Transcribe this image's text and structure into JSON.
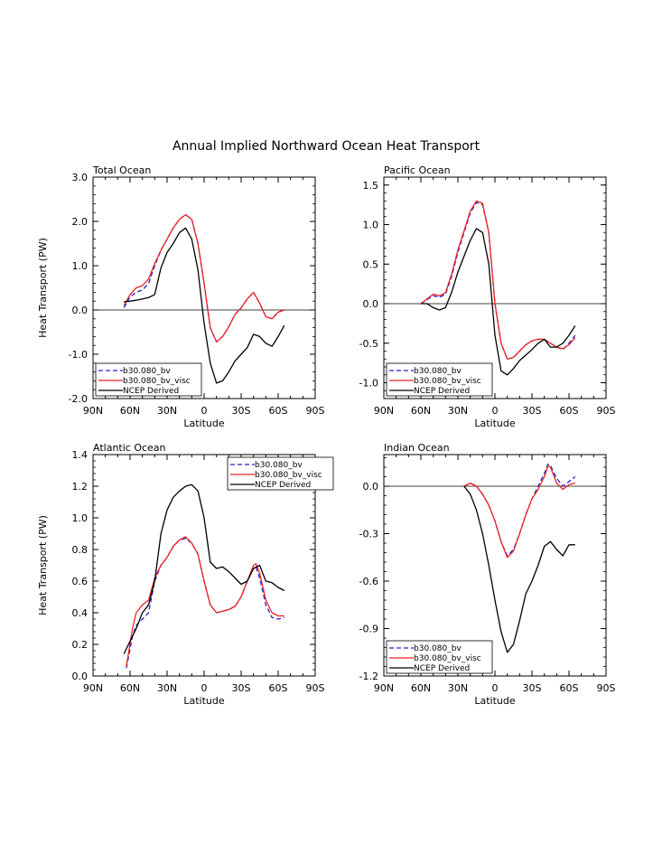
{
  "main_title": "Annual Implied Northward Ocean Heat Transport",
  "colors": {
    "b30_080_bv": "#2222cc",
    "b30_080_bv_visc": "#ee2222",
    "ncep": "#000000"
  },
  "chart_data": [
    {
      "type": "line",
      "title": "Total Ocean",
      "xlabel": "Latitude",
      "ylabel": "Heat Transport (PW)",
      "xlim": [
        -90,
        90
      ],
      "ylim": [
        -2.0,
        3.0
      ],
      "x_ticks": [
        -90,
        -60,
        -30,
        0,
        30,
        60,
        90
      ],
      "x_tick_labels": [
        "90N",
        "60N",
        "30N",
        "0",
        "30S",
        "60S",
        "90S"
      ],
      "y_ticks": [
        -2.0,
        -1.0,
        0.0,
        1.0,
        2.0,
        3.0
      ],
      "y_tick_labels": [
        "-2.0",
        "-1.0",
        "0.0",
        "1.0",
        "2.0",
        "3.0"
      ],
      "legend_loc": "bottom-left",
      "series": [
        {
          "name": "b30.080_bv",
          "style": "dashed",
          "x": [
            -65,
            -60,
            -55,
            -50,
            -45,
            -40,
            -35,
            -30,
            -25,
            -20,
            -15,
            -10,
            -5,
            0,
            5,
            10,
            15,
            20,
            25,
            30,
            35,
            40,
            45,
            50,
            55,
            60,
            65
          ],
          "y": [
            0.05,
            0.3,
            0.4,
            0.45,
            0.6,
            1.0,
            1.35,
            1.6,
            1.85,
            2.05,
            2.15,
            2.05,
            1.5,
            0.6,
            -0.4,
            -0.72,
            -0.6,
            -0.38,
            -0.1,
            0.05,
            0.25,
            0.4,
            0.15,
            -0.15,
            -0.2,
            -0.05,
            0.0
          ]
        },
        {
          "name": "b30.080_bv_visc",
          "style": "solid",
          "x": [
            -65,
            -60,
            -55,
            -50,
            -45,
            -40,
            -35,
            -30,
            -25,
            -20,
            -15,
            -10,
            -5,
            0,
            5,
            10,
            15,
            20,
            25,
            30,
            35,
            40,
            45,
            50,
            55,
            60,
            65
          ],
          "y": [
            0.1,
            0.35,
            0.5,
            0.55,
            0.7,
            1.05,
            1.35,
            1.6,
            1.85,
            2.05,
            2.15,
            2.05,
            1.5,
            0.6,
            -0.4,
            -0.72,
            -0.6,
            -0.38,
            -0.1,
            0.05,
            0.25,
            0.4,
            0.15,
            -0.15,
            -0.2,
            -0.05,
            0.0
          ]
        },
        {
          "name": "NCEP Derived",
          "style": "solid",
          "x": [
            -65,
            -60,
            -55,
            -50,
            -45,
            -40,
            -35,
            -30,
            -25,
            -20,
            -15,
            -10,
            -5,
            0,
            5,
            10,
            15,
            20,
            25,
            30,
            35,
            40,
            45,
            50,
            55,
            60,
            65
          ],
          "y": [
            0.18,
            0.2,
            0.22,
            0.25,
            0.28,
            0.35,
            0.95,
            1.3,
            1.5,
            1.75,
            1.85,
            1.6,
            0.9,
            -0.3,
            -1.2,
            -1.65,
            -1.6,
            -1.4,
            -1.15,
            -1.0,
            -0.85,
            -0.55,
            -0.6,
            -0.75,
            -0.82,
            -0.6,
            -0.35
          ]
        }
      ]
    },
    {
      "type": "line",
      "title": "Pacific Ocean",
      "xlabel": "Latitude",
      "ylabel": "",
      "xlim": [
        -90,
        90
      ],
      "ylim": [
        -1.2,
        1.6
      ],
      "x_ticks": [
        -90,
        -60,
        -30,
        0,
        30,
        60,
        90
      ],
      "x_tick_labels": [
        "90N",
        "60N",
        "30N",
        "0",
        "30S",
        "60S",
        "90S"
      ],
      "y_ticks": [
        -1.0,
        -0.5,
        0.0,
        0.5,
        1.0,
        1.5
      ],
      "y_tick_labels": [
        "-1.0",
        "-0.5",
        "0.0",
        "0.5",
        "1.0",
        "1.5"
      ],
      "legend_loc": "bottom-left",
      "series": [
        {
          "name": "b30.080_bv",
          "style": "dashed",
          "x": [
            -60,
            -55,
            -50,
            -45,
            -40,
            -35,
            -30,
            -25,
            -20,
            -15,
            -10,
            -5,
            0,
            5,
            10,
            15,
            20,
            25,
            30,
            35,
            40,
            45,
            50,
            55,
            60,
            65
          ],
          "y": [
            0.0,
            0.05,
            0.1,
            0.08,
            0.12,
            0.35,
            0.65,
            0.9,
            1.15,
            1.28,
            1.25,
            0.9,
            0.0,
            -0.5,
            -0.7,
            -0.68,
            -0.6,
            -0.52,
            -0.47,
            -0.45,
            -0.45,
            -0.5,
            -0.55,
            -0.58,
            -0.5,
            -0.4
          ]
        },
        {
          "name": "b30.080_bv_visc",
          "style": "solid",
          "x": [
            -60,
            -55,
            -50,
            -45,
            -40,
            -35,
            -30,
            -25,
            -20,
            -15,
            -10,
            -5,
            0,
            5,
            10,
            15,
            20,
            25,
            30,
            35,
            40,
            45,
            50,
            55,
            60,
            65
          ],
          "y": [
            0.0,
            0.06,
            0.12,
            0.1,
            0.14,
            0.38,
            0.68,
            0.92,
            1.17,
            1.3,
            1.27,
            0.9,
            0.0,
            -0.5,
            -0.7,
            -0.68,
            -0.6,
            -0.52,
            -0.47,
            -0.45,
            -0.45,
            -0.5,
            -0.55,
            -0.57,
            -0.52,
            -0.43
          ]
        },
        {
          "name": "NCEP Derived",
          "style": "solid",
          "x": [
            -60,
            -55,
            -50,
            -45,
            -40,
            -35,
            -30,
            -25,
            -20,
            -15,
            -10,
            -5,
            0,
            5,
            10,
            15,
            20,
            25,
            30,
            35,
            40,
            45,
            50,
            55,
            60,
            65
          ],
          "y": [
            0.0,
            0.0,
            -0.05,
            -0.08,
            -0.05,
            0.15,
            0.4,
            0.6,
            0.8,
            0.95,
            0.9,
            0.5,
            -0.4,
            -0.85,
            -0.9,
            -0.82,
            -0.72,
            -0.65,
            -0.58,
            -0.5,
            -0.45,
            -0.55,
            -0.55,
            -0.5,
            -0.4,
            -0.28
          ]
        }
      ]
    },
    {
      "type": "line",
      "title": "Atlantic Ocean",
      "xlabel": "Latitude",
      "ylabel": "Heat Transport (PW)",
      "xlim": [
        -90,
        90
      ],
      "ylim": [
        0.0,
        1.4
      ],
      "x_ticks": [
        -90,
        -60,
        -30,
        0,
        30,
        60,
        90
      ],
      "x_tick_labels": [
        "90N",
        "60N",
        "30N",
        "0",
        "30S",
        "60S",
        "90S"
      ],
      "y_ticks": [
        0.0,
        0.2,
        0.4,
        0.6,
        0.8,
        1.0,
        1.2,
        1.4
      ],
      "y_tick_labels": [
        "0.0",
        "0.2",
        "0.4",
        "0.6",
        "0.8",
        "1.0",
        "1.2",
        "1.4"
      ],
      "legend_loc": "top-right",
      "series": [
        {
          "name": "b30.080_bv",
          "style": "dashed",
          "x": [
            -63,
            -58,
            -55,
            -50,
            -45,
            -40,
            -35,
            -30,
            -25,
            -20,
            -15,
            -10,
            -5,
            0,
            5,
            10,
            15,
            20,
            25,
            30,
            35,
            40,
            42,
            45,
            50,
            55,
            60,
            65
          ],
          "y": [
            0.05,
            0.25,
            0.32,
            0.36,
            0.4,
            0.6,
            0.7,
            0.75,
            0.82,
            0.86,
            0.87,
            0.84,
            0.77,
            0.6,
            0.45,
            0.4,
            0.41,
            0.42,
            0.44,
            0.5,
            0.6,
            0.68,
            0.69,
            0.62,
            0.45,
            0.37,
            0.36,
            0.37
          ]
        },
        {
          "name": "b30.080_bv_visc",
          "style": "solid",
          "x": [
            -63,
            -58,
            -55,
            -50,
            -45,
            -40,
            -35,
            -30,
            -25,
            -20,
            -15,
            -10,
            -5,
            0,
            5,
            10,
            15,
            20,
            25,
            30,
            35,
            40,
            42,
            45,
            50,
            55,
            60,
            65
          ],
          "y": [
            0.06,
            0.3,
            0.4,
            0.45,
            0.48,
            0.62,
            0.7,
            0.75,
            0.82,
            0.86,
            0.88,
            0.84,
            0.77,
            0.6,
            0.45,
            0.4,
            0.41,
            0.42,
            0.44,
            0.5,
            0.6,
            0.7,
            0.71,
            0.65,
            0.48,
            0.4,
            0.38,
            0.38
          ]
        },
        {
          "name": "NCEP Derived",
          "style": "solid",
          "x": [
            -65,
            -60,
            -55,
            -50,
            -45,
            -40,
            -35,
            -30,
            -25,
            -20,
            -15,
            -10,
            -5,
            0,
            5,
            10,
            15,
            20,
            25,
            30,
            35,
            40,
            45,
            50,
            55,
            60,
            65
          ],
          "y": [
            0.14,
            0.22,
            0.3,
            0.4,
            0.45,
            0.6,
            0.9,
            1.05,
            1.13,
            1.17,
            1.2,
            1.21,
            1.17,
            1.0,
            0.72,
            0.68,
            0.69,
            0.66,
            0.62,
            0.58,
            0.6,
            0.68,
            0.7,
            0.6,
            0.59,
            0.56,
            0.54
          ]
        }
      ]
    },
    {
      "type": "line",
      "title": "Indian Ocean",
      "xlabel": "Latitude",
      "ylabel": "",
      "xlim": [
        -90,
        90
      ],
      "ylim": [
        -1.2,
        0.2
      ],
      "x_ticks": [
        -90,
        -60,
        -30,
        0,
        30,
        60,
        90
      ],
      "x_tick_labels": [
        "90N",
        "60N",
        "30N",
        "0",
        "30S",
        "60S",
        "90S"
      ],
      "y_ticks": [
        -1.2,
        -0.9,
        -0.6,
        -0.3,
        0.0
      ],
      "y_tick_labels": [
        "-1.2",
        "-0.9",
        "-0.6",
        "-0.3",
        "0.0"
      ],
      "legend_loc": "bottom-left",
      "series": [
        {
          "name": "b30.080_bv",
          "style": "dashed",
          "x": [
            -25,
            -20,
            -15,
            -10,
            -5,
            0,
            5,
            10,
            15,
            20,
            25,
            30,
            35,
            40,
            43,
            45,
            50,
            55,
            60,
            65
          ],
          "y": [
            0.0,
            0.02,
            0.0,
            -0.05,
            -0.12,
            -0.22,
            -0.35,
            -0.44,
            -0.4,
            -0.3,
            -0.18,
            -0.08,
            0.0,
            0.08,
            0.14,
            0.13,
            0.05,
            0.0,
            0.03,
            0.06
          ]
        },
        {
          "name": "b30.080_bv_visc",
          "style": "solid",
          "x": [
            -25,
            -20,
            -15,
            -10,
            -5,
            0,
            5,
            10,
            15,
            20,
            25,
            30,
            35,
            40,
            43,
            45,
            50,
            55,
            60,
            65
          ],
          "y": [
            0.0,
            0.02,
            0.0,
            -0.05,
            -0.12,
            -0.22,
            -0.35,
            -0.45,
            -0.41,
            -0.3,
            -0.18,
            -0.08,
            -0.02,
            0.06,
            0.13,
            0.12,
            0.02,
            -0.02,
            0.01,
            0.02
          ]
        },
        {
          "name": "NCEP Derived",
          "style": "solid",
          "x": [
            -25,
            -20,
            -15,
            -10,
            -5,
            0,
            5,
            10,
            15,
            20,
            25,
            30,
            35,
            40,
            45,
            50,
            55,
            60,
            65
          ],
          "y": [
            0.0,
            -0.05,
            -0.15,
            -0.3,
            -0.5,
            -0.72,
            -0.92,
            -1.05,
            -1.0,
            -0.85,
            -0.68,
            -0.6,
            -0.5,
            -0.38,
            -0.35,
            -0.4,
            -0.44,
            -0.37,
            -0.37
          ]
        }
      ]
    }
  ]
}
